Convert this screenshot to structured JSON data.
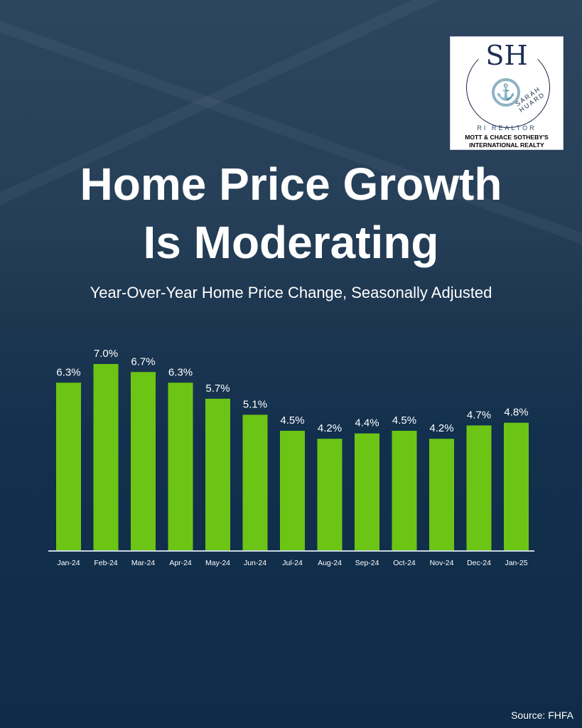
{
  "logo": {
    "monogram": "SJ H",
    "name": "SARAH HUARD",
    "role": "RI REALTOR",
    "brokerage": "MOTT & CHACE SOTHEBY'S INTERNATIONAL REALTY"
  },
  "title_line1": "Home Price Growth",
  "title_line2": "Is Moderating",
  "source": "Source: FHFA",
  "chart_data": {
    "type": "bar",
    "title": "Home Price Growth Is Moderating",
    "subtitle": "Year-Over-Year Home Price Change, Seasonally Adjusted",
    "categories": [
      "Jan-24",
      "Feb-24",
      "Mar-24",
      "Apr-24",
      "May-24",
      "Jun-24",
      "Jul-24",
      "Aug-24",
      "Sep-24",
      "Oct-24",
      "Nov-24",
      "Dec-24",
      "Jan-25"
    ],
    "values": [
      6.3,
      7.0,
      6.7,
      6.3,
      5.7,
      5.1,
      4.5,
      4.2,
      4.4,
      4.5,
      4.2,
      4.7,
      4.8
    ],
    "labels": [
      "6.3%",
      "7.0%",
      "6.7%",
      "6.3%",
      "5.7%",
      "5.1%",
      "4.5%",
      "4.2%",
      "4.4%",
      "4.5%",
      "4.2%",
      "4.7%",
      "4.8%"
    ],
    "ylim": [
      0,
      7.0
    ],
    "bar_color": "#6cc514",
    "grid": false
  }
}
